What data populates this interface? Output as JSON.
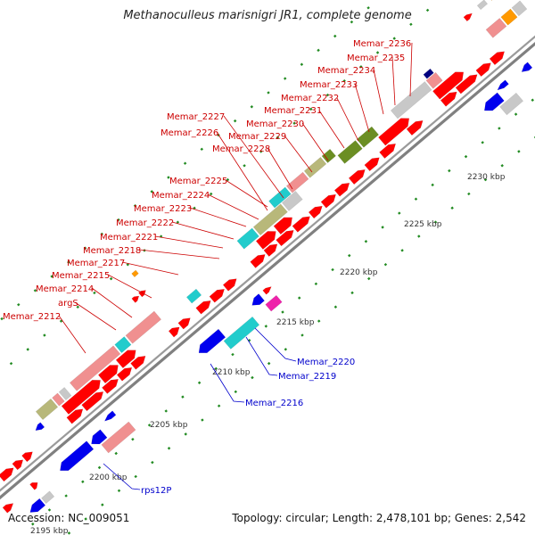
{
  "title": "Methanoculleus marisnigri JR1, complete genome",
  "footer": {
    "accession": "Accession: NC_009051",
    "summary": "Topology: circular; Length: 2,478,101 bp; Genes: 2,542"
  },
  "scale_labels": [
    "2200 kbp",
    "2205 kbp",
    "2210 kbp",
    "2215 kbp",
    "2220 kbp",
    "2225 kbp",
    "2230 kbp"
  ],
  "partial_scale_label": "2195 kbp",
  "upper_gene_labels": [
    "Memar_2236",
    "Memar_2235",
    "Memar_2234",
    "Memar_2233",
    "Memar_2232",
    "Memar_2231",
    "Memar_2230",
    "Memar_2229",
    "Memar_2228",
    "Memar_2227",
    "Memar_2226",
    "Memar_2225",
    "Memar_2224",
    "Memar_2223",
    "Memar_2222",
    "Memar_2221",
    "Memar_2218",
    "Memar_2217",
    "Memar_2215",
    "Memar_2214",
    "argS",
    "Memar_2212"
  ],
  "lower_gene_labels": [
    "Memar_2220",
    "Memar_2219",
    "Memar_2216",
    "rps12P"
  ],
  "colors": {
    "forward_arrow": "#ff0000",
    "reverse_arrow": "#0000ee",
    "cds_pink": "#f09090",
    "cds_gray": "#c8c8c8",
    "cds_olive": "#b8b87a",
    "cds_green": "#6b8e23",
    "cds_cyan": "#22cccc",
    "cds_magenta": "#ee22aa",
    "cds_orange": "#ff9900",
    "cds_navy": "#000080",
    "backbone": "#808080",
    "tick": "#228b22",
    "upper_label": "#cc0000",
    "lower_label": "#0000cc"
  }
}
